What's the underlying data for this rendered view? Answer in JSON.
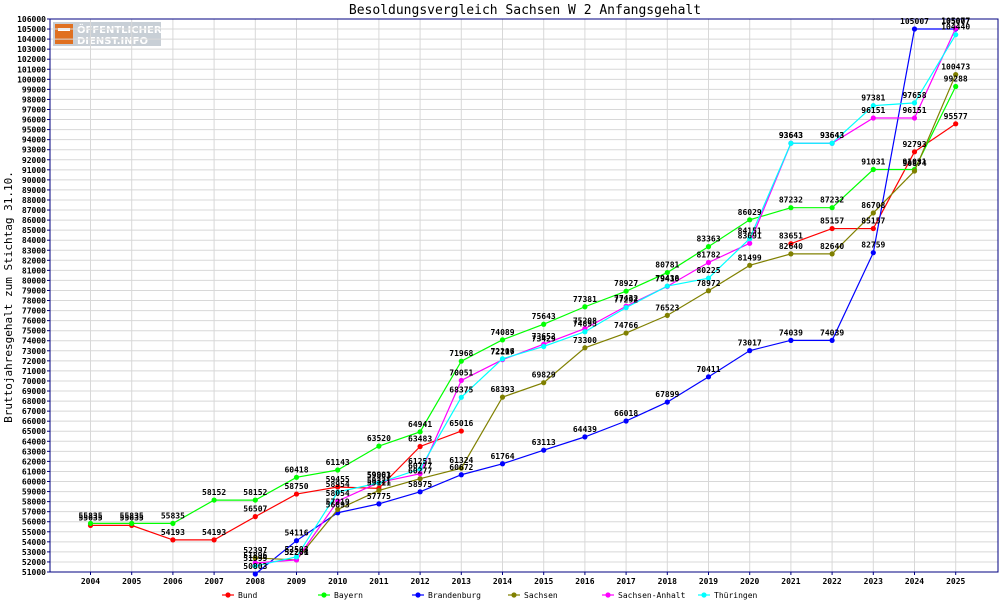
{
  "logo": {
    "line1": "ÖFFENTLICHER",
    "line2": "DIENST.INFO"
  },
  "chart_data": {
    "type": "line",
    "title": "Besoldungsvergleich Sachsen W 2 Anfangsgehalt",
    "xlabel": "",
    "ylabel": "Bruttojahresgehalt zum Stichtag 31.10.",
    "ylim": [
      51000,
      106000
    ],
    "y_ticks": [
      51000,
      52000,
      53000,
      54000,
      55000,
      56000,
      57000,
      58000,
      59000,
      60000,
      61000,
      62000,
      63000,
      64000,
      65000,
      66000,
      67000,
      68000,
      69000,
      70000,
      71000,
      72000,
      73000,
      74000,
      75000,
      76000,
      77000,
      78000,
      79000,
      80000,
      81000,
      82000,
      83000,
      84000,
      85000,
      86000,
      87000,
      88000,
      89000,
      90000,
      91000,
      92000,
      93000,
      94000,
      95000,
      96000,
      97000,
      98000,
      99000,
      100000,
      101000,
      102000,
      103000,
      104000,
      105000,
      106000
    ],
    "x": [
      2004,
      2005,
      2006,
      2007,
      2008,
      2009,
      2010,
      2011,
      2012,
      2013,
      2014,
      2015,
      2016,
      2017,
      2018,
      2019,
      2020,
      2021,
      2022,
      2023,
      2024,
      2025
    ],
    "grid": true,
    "legend_position": "bottom",
    "series": [
      {
        "name": "Bund",
        "color": "#ff0000",
        "values": [
          55635,
          55635,
          54193,
          54193,
          56507,
          58750,
          59455,
          59321,
          63483,
          65016,
          null,
          null,
          null,
          null,
          null,
          null,
          null,
          83651,
          85157,
          85157,
          92793,
          95577
        ]
      },
      {
        "name": "Bayern",
        "color": "#00ff00",
        "values": [
          55835,
          55835,
          55835,
          58152,
          58152,
          60418,
          61143,
          63520,
          64941,
          71968,
          74089,
          75643,
          77381,
          78927,
          80781,
          83363,
          86029,
          87232,
          87232,
          91031,
          91031,
          99288
        ]
      },
      {
        "name": "Brandenburg",
        "color": "#0000ff",
        "values": [
          null,
          null,
          null,
          null,
          50803,
          54116,
          56893,
          57775,
          58975,
          60672,
          61764,
          63113,
          64439,
          66018,
          67899,
          70411,
          73017,
          74039,
          74039,
          82759,
          105007,
          105007
        ]
      },
      {
        "name": "Sachsen",
        "color": "#808000",
        "values": [
          null,
          null,
          null,
          null,
          52397,
          52201,
          57219,
          59111,
          60277,
          61324,
          68393,
          69829,
          73300,
          74766,
          76523,
          78972,
          81499,
          82640,
          82640,
          86708,
          90874,
          100473
        ]
      },
      {
        "name": "Sachsen-Anhalt",
        "color": "#ff00ff",
        "values": [
          null,
          null,
          null,
          null,
          51896,
          52204,
          58054,
          59901,
          60777,
          70051,
          72117,
          73652,
          75208,
          77432,
          79410,
          81782,
          83691,
          93643,
          93643,
          96151,
          96151,
          105077
        ]
      },
      {
        "name": "Thüringen",
        "color": "#00ffff",
        "values": [
          null,
          null,
          null,
          null,
          51599,
          52503,
          58954,
          59863,
          61251,
          68375,
          72206,
          73429,
          74895,
          77292,
          79438,
          80225,
          84151,
          93643,
          93643,
          97381,
          97658,
          104440
        ]
      }
    ]
  }
}
